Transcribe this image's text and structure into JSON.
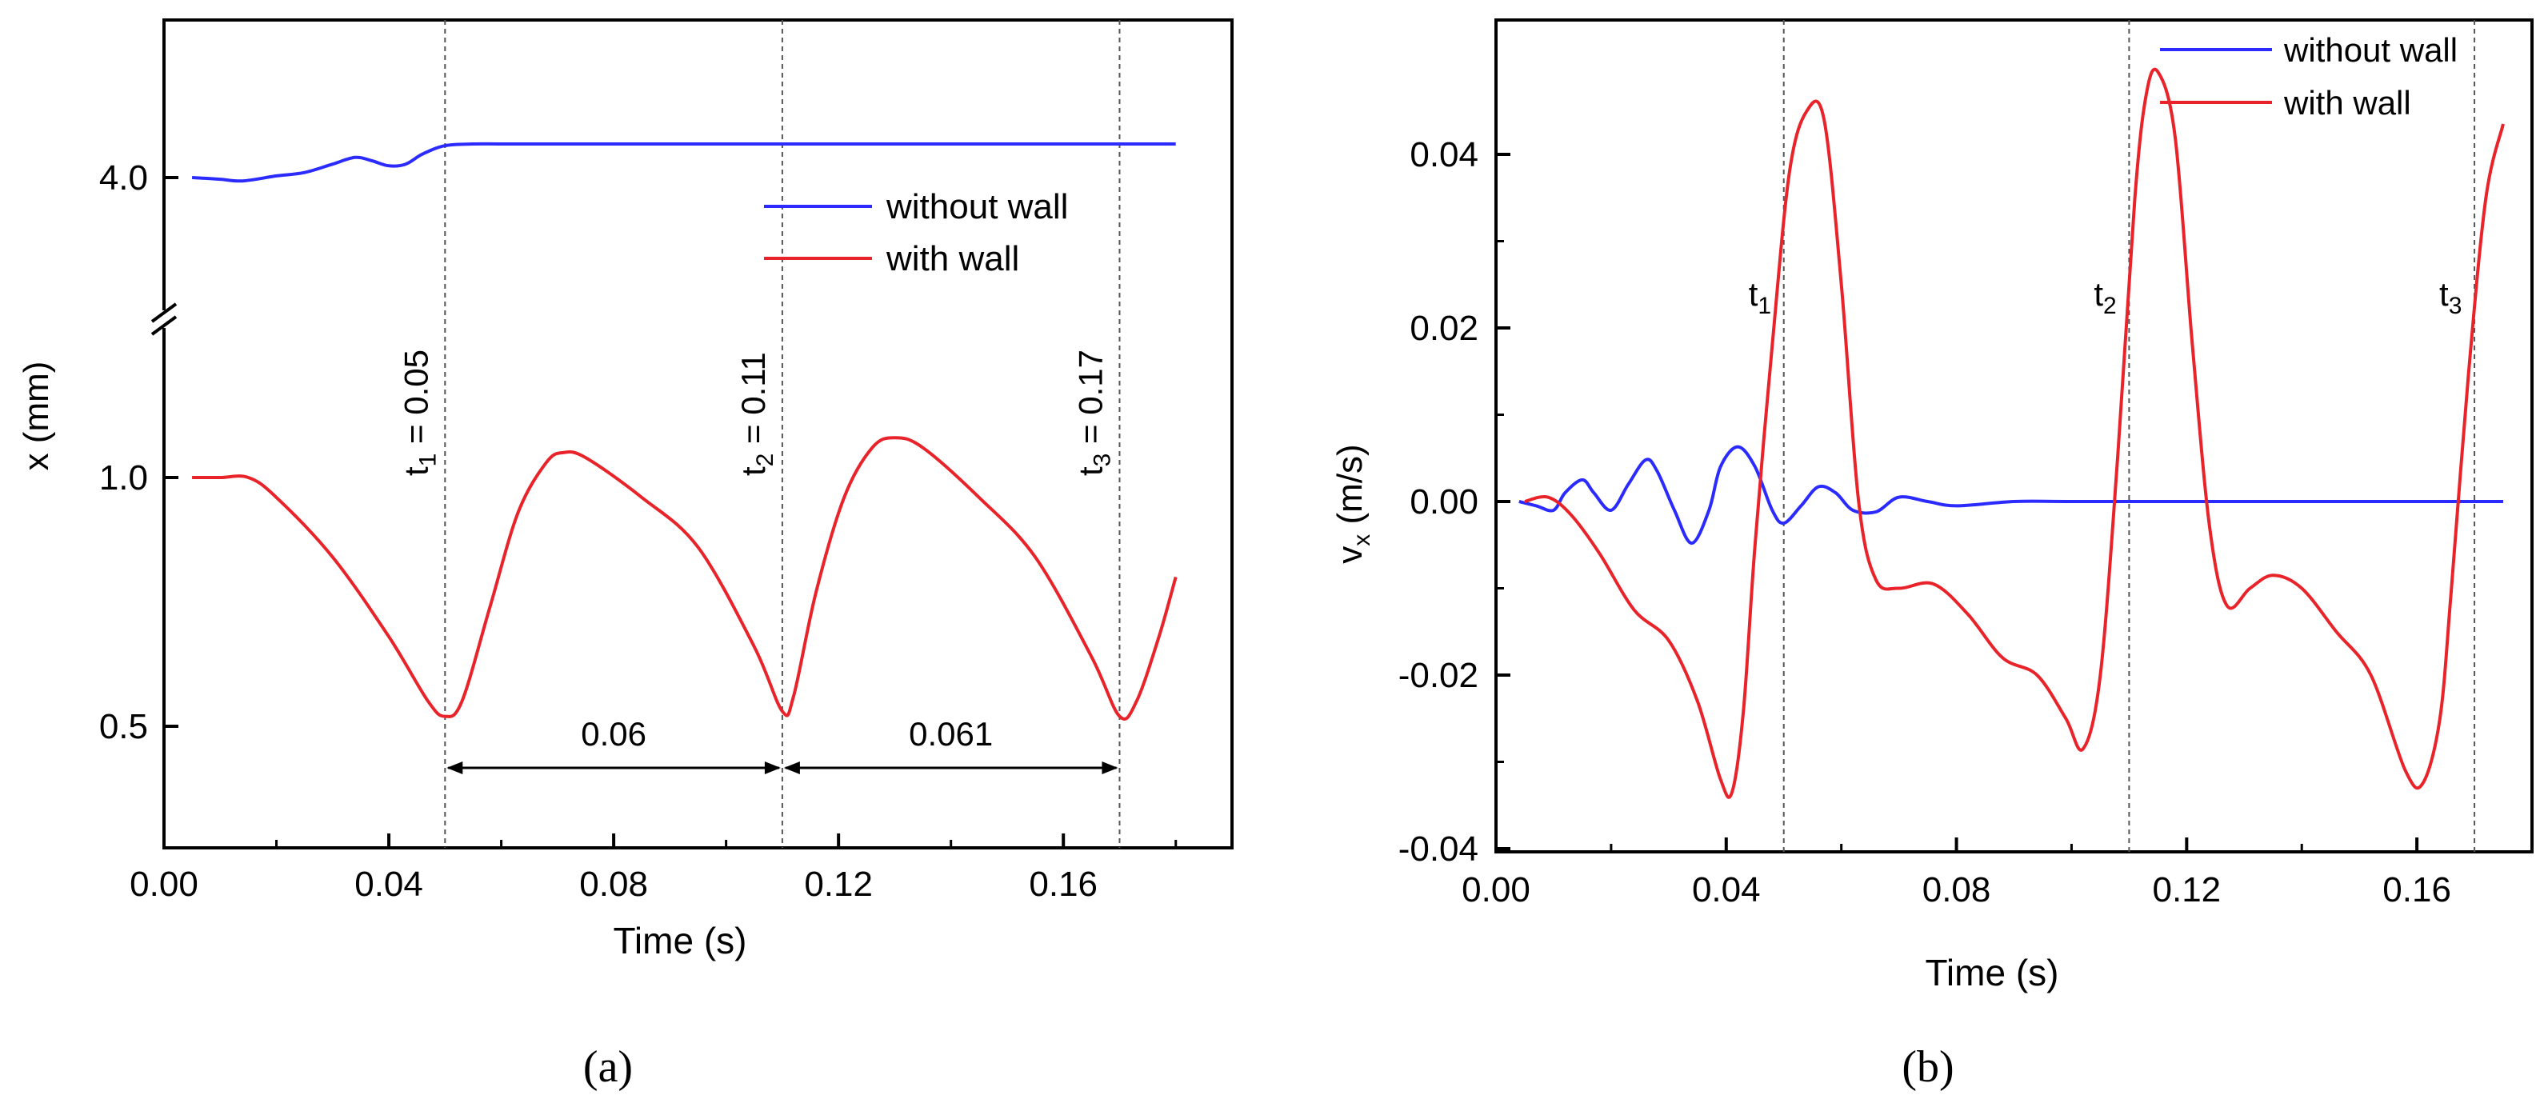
{
  "colors": {
    "without_wall": "#2b2bff",
    "with_wall": "#e8232a",
    "axis": "#000000",
    "marker_line": "#555555"
  },
  "chart_data": [
    {
      "panel": "(a)",
      "type": "line",
      "xlabel": "Time (s)",
      "ylabel": "x (mm)",
      "xlim": [
        0.0,
        0.19
      ],
      "xticks": [
        "0.00",
        "0.04",
        "0.08",
        "0.12",
        "0.16"
      ],
      "broken_y_axis": true,
      "upper_segment": {
        "yticks": [
          "4.0"
        ]
      },
      "lower_segment": {
        "ylim": [
          0.3,
          1.4
        ],
        "yticks": [
          "0.5",
          "1.0"
        ]
      },
      "legend": {
        "position": "middle-right",
        "entries": [
          "without wall",
          "with wall"
        ]
      },
      "series": [
        {
          "name": "without wall",
          "segment": "upper",
          "x": [
            0.005,
            0.01,
            0.014,
            0.02,
            0.025,
            0.03,
            0.034,
            0.037,
            0.04,
            0.043,
            0.046,
            0.05,
            0.055,
            0.06,
            0.07,
            0.08,
            0.1,
            0.12,
            0.14,
            0.16,
            0.18
          ],
          "y": [
            4.0,
            3.995,
            3.99,
            4.005,
            4.015,
            4.04,
            4.06,
            4.05,
            4.035,
            4.04,
            4.07,
            4.095,
            4.1,
            4.1,
            4.1,
            4.1,
            4.1,
            4.1,
            4.1,
            4.1,
            4.1
          ]
        },
        {
          "name": "with wall",
          "segment": "lower",
          "x": [
            0.005,
            0.01,
            0.015,
            0.02,
            0.03,
            0.04,
            0.047,
            0.05,
            0.053,
            0.058,
            0.063,
            0.068,
            0.071,
            0.075,
            0.085,
            0.095,
            0.105,
            0.11,
            0.112,
            0.116,
            0.121,
            0.126,
            0.13,
            0.135,
            0.145,
            0.155,
            0.165,
            0.17,
            0.173,
            0.177,
            0.18
          ],
          "y": [
            1.0,
            1.0,
            1.0,
            0.96,
            0.84,
            0.68,
            0.55,
            0.52,
            0.55,
            0.74,
            0.93,
            1.03,
            1.05,
            1.04,
            0.96,
            0.86,
            0.66,
            0.53,
            0.56,
            0.77,
            0.96,
            1.06,
            1.08,
            1.06,
            0.96,
            0.84,
            0.64,
            0.52,
            0.55,
            0.68,
            0.8
          ]
        }
      ],
      "markers": [
        {
          "x": 0.05,
          "label": "t",
          "sub": "1",
          "rest": " = 0.05"
        },
        {
          "x": 0.11,
          "label": "t",
          "sub": "2",
          "rest": " = 0.11"
        },
        {
          "x": 0.17,
          "label": "t",
          "sub": "3",
          "rest": " = 0.17"
        }
      ],
      "intervals": [
        {
          "from": 0.05,
          "to": 0.11,
          "y": 0.48,
          "label": "0.06"
        },
        {
          "from": 0.11,
          "to": 0.17,
          "y": 0.48,
          "label": "0.061"
        }
      ]
    },
    {
      "panel": "(b)",
      "type": "line",
      "xlabel": "Time (s)",
      "ylabel_main": "v",
      "ylabel_sub": "x",
      "ylabel_rest": " (m/s)",
      "xlim": [
        0.0,
        0.18
      ],
      "ylim": [
        -0.04,
        0.054
      ],
      "xticks": [
        "0.00",
        "0.04",
        "0.08",
        "0.12",
        "0.16"
      ],
      "yticks": [
        "-0.04",
        "-0.02",
        "0.00",
        "0.02",
        "0.04"
      ],
      "legend": {
        "position": "top-right",
        "entries": [
          "without wall",
          "with wall"
        ]
      },
      "series": [
        {
          "name": "without wall",
          "x": [
            0.004,
            0.007,
            0.01,
            0.012,
            0.015,
            0.017,
            0.02,
            0.023,
            0.026,
            0.028,
            0.031,
            0.034,
            0.037,
            0.039,
            0.042,
            0.045,
            0.048,
            0.05,
            0.053,
            0.056,
            0.059,
            0.062,
            0.066,
            0.07,
            0.075,
            0.08,
            0.09,
            0.1,
            0.12,
            0.14,
            0.16,
            0.175
          ],
          "y": [
            0.0,
            -0.0005,
            -0.001,
            0.001,
            0.0025,
            0.001,
            -0.001,
            0.002,
            0.0048,
            0.0035,
            -0.001,
            -0.0048,
            -0.001,
            0.004,
            0.0063,
            0.004,
            -0.001,
            -0.0025,
            -0.0005,
            0.0017,
            0.001,
            -0.001,
            -0.0012,
            0.0005,
            0.0,
            -0.0005,
            0.0,
            0.0,
            0.0,
            0.0,
            0.0,
            0.0
          ]
        },
        {
          "name": "with wall",
          "x": [
            0.005,
            0.009,
            0.013,
            0.018,
            0.024,
            0.03,
            0.035,
            0.039,
            0.041,
            0.043,
            0.045,
            0.048,
            0.051,
            0.054,
            0.057,
            0.06,
            0.063,
            0.066,
            0.07,
            0.076,
            0.082,
            0.088,
            0.094,
            0.099,
            0.102,
            0.105,
            0.108,
            0.111,
            0.113,
            0.115,
            0.118,
            0.121,
            0.124,
            0.127,
            0.131,
            0.135,
            0.14,
            0.146,
            0.152,
            0.158,
            0.161,
            0.164,
            0.166,
            0.169,
            0.172,
            0.175
          ],
          "y": [
            0.0,
            0.0005,
            -0.0015,
            -0.006,
            -0.0125,
            -0.016,
            -0.023,
            -0.032,
            -0.0335,
            -0.024,
            -0.005,
            0.018,
            0.038,
            0.045,
            0.044,
            0.025,
            0.0,
            -0.009,
            -0.01,
            -0.0095,
            -0.013,
            -0.018,
            -0.02,
            -0.025,
            -0.0285,
            -0.02,
            0.005,
            0.035,
            0.047,
            0.0495,
            0.042,
            0.018,
            -0.003,
            -0.012,
            -0.01,
            -0.0085,
            -0.01,
            -0.015,
            -0.02,
            -0.031,
            -0.0325,
            -0.025,
            -0.01,
            0.015,
            0.035,
            0.0435
          ]
        }
      ],
      "markers": [
        {
          "x": 0.05,
          "label": "t",
          "sub": "1"
        },
        {
          "x": 0.11,
          "label": "t",
          "sub": "2"
        },
        {
          "x": 0.17,
          "label": "t",
          "sub": "3"
        }
      ]
    }
  ],
  "captions": {
    "a": "(a)",
    "b": "(b)"
  }
}
